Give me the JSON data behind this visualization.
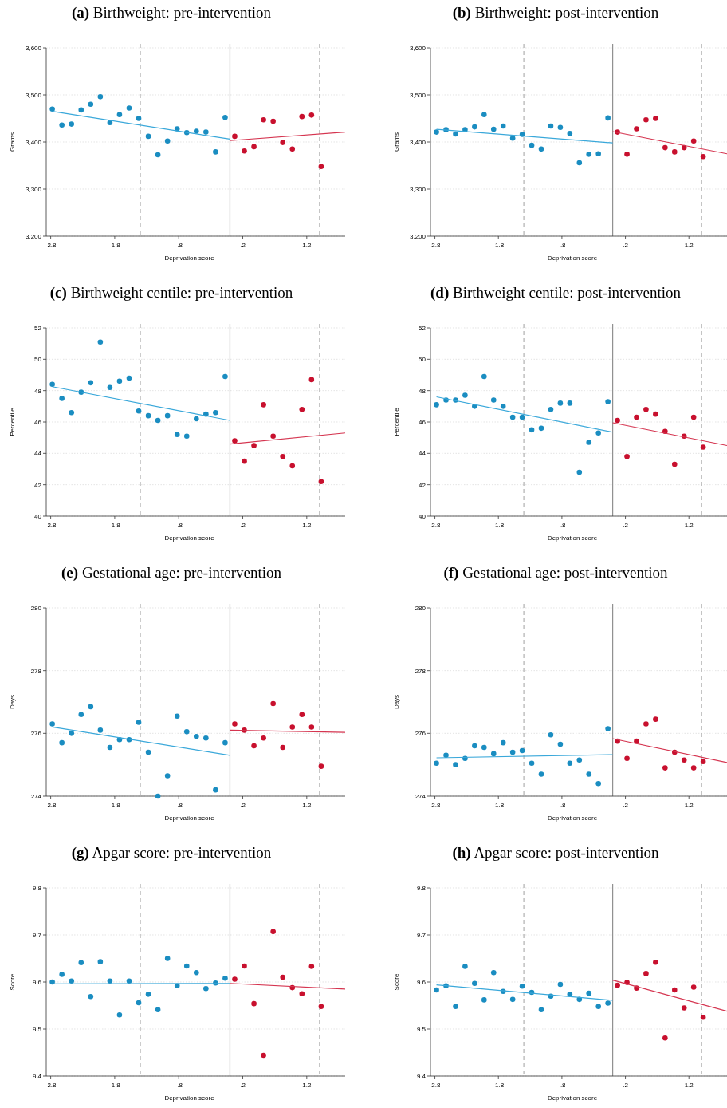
{
  "chart_data": [
    {
      "type": "scatter",
      "title": "(a) Birthweight: pre-intervention",
      "xlabel": "Deprivation score",
      "ylabel": "Grams",
      "xlim": [
        -2.87,
        1.8
      ],
      "ylim": [
        3200,
        3600
      ],
      "xticks": [
        {
          "value": -2.8,
          "label": "-2.8"
        },
        {
          "value": -1.8,
          "label": "-1.8"
        },
        {
          "value": -0.8,
          "label": "-.8"
        },
        {
          "value": 0.2,
          "label": ".2"
        },
        {
          "value": 1.2,
          "label": "1.2"
        }
      ],
      "yticks": [
        {
          "value": 3200,
          "label": "3,200"
        },
        {
          "value": 3300,
          "label": "3,300"
        },
        {
          "value": 3400,
          "label": "3,400"
        },
        {
          "value": 3500,
          "label": "3,500"
        },
        {
          "value": 3600,
          "label": "3,600"
        }
      ],
      "grid": "y",
      "marker": "circle",
      "ref_lines": [
        {
          "axis": "x",
          "value": -1.4,
          "color": "#b0b0b0",
          "line_style": "dashed"
        },
        {
          "axis": "x",
          "value": 0,
          "color": "#909090",
          "line_style": "solid"
        },
        {
          "axis": "x",
          "value": 1.4,
          "color": "#b0b0b0",
          "line_style": "dashed"
        }
      ],
      "series": [
        {
          "type": "scatter",
          "color": "#1a8dc1",
          "x": [
            -2.775,
            -2.625,
            -2.475,
            -2.325,
            -2.175,
            -2.025,
            -1.875,
            -1.725,
            -1.575,
            -1.425,
            -1.275,
            -1.125,
            -0.975,
            -0.825,
            -0.675,
            -0.525,
            -0.375,
            -0.225,
            -0.075
          ],
          "values": [
            3470,
            3436,
            3438,
            3468,
            3480,
            3496,
            3441,
            3458,
            3472,
            3450,
            3412,
            3373,
            3402,
            3428,
            3420,
            3423,
            3421,
            3379,
            3452
          ]
        },
        {
          "type": "line",
          "color": "#3aa8da",
          "x": [
            -2.775,
            0
          ],
          "values": [
            3465,
            3406
          ],
          "marker": "none"
        },
        {
          "type": "scatter",
          "color": "#c8102e",
          "x": [
            0.075,
            0.225,
            0.375,
            0.525,
            0.675,
            0.825,
            0.975,
            1.125,
            1.275,
            1.425
          ],
          "values": [
            3412,
            3381,
            3390,
            3447,
            3444,
            3399,
            3385,
            3454,
            3457,
            3348
          ]
        },
        {
          "type": "line",
          "color": "#d53550",
          "x": [
            0,
            1.8
          ],
          "values": [
            3403,
            3421
          ],
          "marker": "none"
        }
      ]
    },
    {
      "type": "scatter",
      "title": "(b) Birthweight: post-intervention",
      "xlabel": "Deprivation score",
      "ylabel": "Grams",
      "xlim": [
        -2.87,
        1.8
      ],
      "ylim": [
        3200,
        3600
      ],
      "xticks": [
        {
          "value": -2.8,
          "label": "-2.8"
        },
        {
          "value": -1.8,
          "label": "-1.8"
        },
        {
          "value": -0.8,
          "label": "-.8"
        },
        {
          "value": 0.2,
          "label": ".2"
        },
        {
          "value": 1.2,
          "label": "1.2"
        }
      ],
      "yticks": [
        {
          "value": 3200,
          "label": "3,200"
        },
        {
          "value": 3300,
          "label": "3,300"
        },
        {
          "value": 3400,
          "label": "3,400"
        },
        {
          "value": 3500,
          "label": "3,500"
        },
        {
          "value": 3600,
          "label": "3,600"
        }
      ],
      "grid": "y",
      "marker": "circle",
      "ref_lines": [
        {
          "axis": "x",
          "value": -1.4,
          "color": "#b0b0b0",
          "line_style": "dashed"
        },
        {
          "axis": "x",
          "value": 0,
          "color": "#909090",
          "line_style": "solid"
        },
        {
          "axis": "x",
          "value": 1.4,
          "color": "#b0b0b0",
          "line_style": "dashed"
        }
      ],
      "series": [
        {
          "type": "scatter",
          "color": "#1a8dc1",
          "x": [
            -2.775,
            -2.625,
            -2.475,
            -2.325,
            -2.175,
            -2.025,
            -1.875,
            -1.725,
            -1.575,
            -1.425,
            -1.275,
            -1.125,
            -0.975,
            -0.825,
            -0.675,
            -0.525,
            -0.375,
            -0.225,
            -0.075
          ],
          "values": [
            3421,
            3426,
            3417,
            3426,
            3432,
            3458,
            3427,
            3434,
            3408,
            3416,
            3393,
            3385,
            3434,
            3431,
            3418,
            3356,
            3374,
            3375,
            3451
          ]
        },
        {
          "type": "line",
          "color": "#3aa8da",
          "x": [
            -2.775,
            0
          ],
          "values": [
            3427,
            3398
          ],
          "marker": "none"
        },
        {
          "type": "scatter",
          "color": "#c8102e",
          "x": [
            0.075,
            0.225,
            0.375,
            0.525,
            0.675,
            0.825,
            0.975,
            1.125,
            1.275,
            1.425
          ],
          "values": [
            3421,
            3374,
            3428,
            3447,
            3450,
            3388,
            3379,
            3388,
            3402,
            3369
          ]
        },
        {
          "type": "line",
          "color": "#d53550",
          "x": [
            0,
            1.8
          ],
          "values": [
            3422,
            3375
          ],
          "marker": "none"
        }
      ]
    },
    {
      "type": "scatter",
      "title": "(c) Birthweight centile: pre-intervention",
      "xlabel": "Deprivation score",
      "ylabel": "Percentile",
      "xlim": [
        -2.87,
        1.8
      ],
      "ylim": [
        40,
        52
      ],
      "xticks": [
        {
          "value": -2.8,
          "label": "-2.8"
        },
        {
          "value": -1.8,
          "label": "-1.8"
        },
        {
          "value": -0.8,
          "label": "-.8"
        },
        {
          "value": 0.2,
          "label": ".2"
        },
        {
          "value": 1.2,
          "label": "1.2"
        }
      ],
      "yticks": [
        40,
        42,
        44,
        46,
        48,
        50,
        52
      ],
      "grid": "y",
      "marker": "circle",
      "ref_lines": [
        {
          "axis": "x",
          "value": -1.4,
          "color": "#b0b0b0",
          "line_style": "dashed"
        },
        {
          "axis": "x",
          "value": 0,
          "color": "#909090",
          "line_style": "solid"
        },
        {
          "axis": "x",
          "value": 1.4,
          "color": "#b0b0b0",
          "line_style": "dashed"
        }
      ],
      "series": [
        {
          "type": "scatter",
          "color": "#1a8dc1",
          "x": [
            -2.775,
            -2.625,
            -2.475,
            -2.325,
            -2.175,
            -2.025,
            -1.875,
            -1.725,
            -1.575,
            -1.425,
            -1.275,
            -1.125,
            -0.975,
            -0.825,
            -0.675,
            -0.525,
            -0.375,
            -0.225,
            -0.075
          ],
          "values": [
            48.4,
            47.5,
            46.6,
            47.9,
            48.5,
            51.1,
            48.2,
            48.6,
            48.8,
            46.7,
            46.4,
            46.1,
            46.4,
            45.2,
            45.1,
            46.2,
            46.5,
            46.6,
            48.9
          ]
        },
        {
          "type": "line",
          "color": "#3aa8da",
          "x": [
            -2.775,
            0
          ],
          "values": [
            48.25,
            46.1
          ],
          "marker": "none"
        },
        {
          "type": "scatter",
          "color": "#c8102e",
          "x": [
            0.075,
            0.225,
            0.375,
            0.525,
            0.675,
            0.825,
            0.975,
            1.125,
            1.275,
            1.425
          ],
          "values": [
            44.8,
            43.5,
            44.5,
            47.1,
            45.1,
            43.8,
            43.2,
            46.8,
            48.7,
            42.2
          ]
        },
        {
          "type": "line",
          "color": "#d53550",
          "x": [
            0,
            1.8
          ],
          "values": [
            44.6,
            45.3
          ],
          "marker": "none"
        }
      ]
    },
    {
      "type": "scatter",
      "title": "(d) Birthweight centile: post-intervention",
      "xlabel": "Deprivation score",
      "ylabel": "Percentile",
      "xlim": [
        -2.87,
        1.8
      ],
      "ylim": [
        40,
        52
      ],
      "xticks": [
        {
          "value": -2.8,
          "label": "-2.8"
        },
        {
          "value": -1.8,
          "label": "-1.8"
        },
        {
          "value": -0.8,
          "label": "-.8"
        },
        {
          "value": 0.2,
          "label": ".2"
        },
        {
          "value": 1.2,
          "label": "1.2"
        }
      ],
      "yticks": [
        40,
        42,
        44,
        46,
        48,
        50,
        52
      ],
      "grid": "y",
      "marker": "circle",
      "ref_lines": [
        {
          "axis": "x",
          "value": -1.4,
          "color": "#b0b0b0",
          "line_style": "dashed"
        },
        {
          "axis": "x",
          "value": 0,
          "color": "#909090",
          "line_style": "solid"
        },
        {
          "axis": "x",
          "value": 1.4,
          "color": "#b0b0b0",
          "line_style": "dashed"
        }
      ],
      "series": [
        {
          "type": "scatter",
          "color": "#1a8dc1",
          "x": [
            -2.775,
            -2.625,
            -2.475,
            -2.325,
            -2.175,
            -2.025,
            -1.875,
            -1.725,
            -1.575,
            -1.425,
            -1.275,
            -1.125,
            -0.975,
            -0.825,
            -0.675,
            -0.525,
            -0.375,
            -0.225,
            -0.075
          ],
          "values": [
            47.1,
            47.4,
            47.4,
            47.7,
            47.0,
            48.9,
            47.4,
            47.0,
            46.3,
            46.3,
            45.5,
            45.6,
            46.8,
            47.2,
            47.2,
            42.8,
            44.7,
            45.3,
            47.3
          ]
        },
        {
          "type": "line",
          "color": "#3aa8da",
          "x": [
            -2.775,
            0
          ],
          "values": [
            47.6,
            45.35
          ],
          "marker": "none"
        },
        {
          "type": "scatter",
          "color": "#c8102e",
          "x": [
            0.075,
            0.225,
            0.375,
            0.525,
            0.675,
            0.825,
            0.975,
            1.125,
            1.275,
            1.425
          ],
          "values": [
            46.1,
            43.8,
            46.3,
            46.8,
            46.5,
            45.4,
            43.3,
            45.1,
            46.3,
            44.4
          ]
        },
        {
          "type": "line",
          "color": "#d53550",
          "x": [
            0,
            1.8
          ],
          "values": [
            45.95,
            44.5
          ],
          "marker": "none"
        }
      ]
    },
    {
      "type": "scatter",
      "title": "(e) Gestational age: pre-intervention",
      "xlabel": "Deprivation score",
      "ylabel": "Days",
      "xlim": [
        -2.87,
        1.8
      ],
      "ylim": [
        274,
        280
      ],
      "xticks": [
        {
          "value": -2.8,
          "label": "-2.8"
        },
        {
          "value": -1.8,
          "label": "-1.8"
        },
        {
          "value": -0.8,
          "label": "-.8"
        },
        {
          "value": 0.2,
          "label": ".2"
        },
        {
          "value": 1.2,
          "label": "1.2"
        }
      ],
      "yticks": [
        274,
        276,
        278,
        280
      ],
      "grid": "y",
      "marker": "circle",
      "ref_lines": [
        {
          "axis": "x",
          "value": -1.4,
          "color": "#b0b0b0",
          "line_style": "dashed"
        },
        {
          "axis": "x",
          "value": 0,
          "color": "#909090",
          "line_style": "solid"
        },
        {
          "axis": "x",
          "value": 1.4,
          "color": "#b0b0b0",
          "line_style": "dashed"
        }
      ],
      "series": [
        {
          "type": "scatter",
          "color": "#1a8dc1",
          "x": [
            -2.775,
            -2.625,
            -2.475,
            -2.325,
            -2.175,
            -2.025,
            -1.875,
            -1.725,
            -1.575,
            -1.425,
            -1.275,
            -1.125,
            -0.975,
            -0.825,
            -0.675,
            -0.525,
            -0.375,
            -0.225,
            -0.075
          ],
          "values": [
            276.3,
            275.7,
            276.0,
            276.6,
            276.85,
            276.1,
            275.55,
            275.8,
            275.8,
            276.35,
            275.4,
            274.0,
            274.65,
            276.55,
            276.05,
            275.9,
            275.85,
            274.2,
            275.7
          ]
        },
        {
          "type": "line",
          "color": "#3aa8da",
          "x": [
            -2.775,
            0
          ],
          "values": [
            276.2,
            275.3
          ],
          "marker": "none"
        },
        {
          "type": "scatter",
          "color": "#c8102e",
          "x": [
            0.075,
            0.225,
            0.375,
            0.525,
            0.675,
            0.825,
            0.975,
            1.125,
            1.275,
            1.425
          ],
          "values": [
            276.3,
            276.1,
            275.6,
            275.85,
            276.95,
            275.55,
            276.2,
            276.6,
            276.2,
            274.95
          ]
        },
        {
          "type": "line",
          "color": "#d53550",
          "x": [
            0,
            1.8
          ],
          "values": [
            276.1,
            276.03
          ],
          "marker": "none"
        }
      ]
    },
    {
      "type": "scatter",
      "title": "(f) Gestational age: post-intervention",
      "xlabel": "Deprivation score",
      "ylabel": "Days",
      "xlim": [
        -2.87,
        1.8
      ],
      "ylim": [
        274,
        280
      ],
      "xticks": [
        {
          "value": -2.8,
          "label": "-2.8"
        },
        {
          "value": -1.8,
          "label": "-1.8"
        },
        {
          "value": -0.8,
          "label": "-.8"
        },
        {
          "value": 0.2,
          "label": ".2"
        },
        {
          "value": 1.2,
          "label": "1.2"
        }
      ],
      "yticks": [
        274,
        276,
        278,
        280
      ],
      "grid": "y",
      "marker": "circle",
      "ref_lines": [
        {
          "axis": "x",
          "value": -1.4,
          "color": "#b0b0b0",
          "line_style": "dashed"
        },
        {
          "axis": "x",
          "value": 0,
          "color": "#909090",
          "line_style": "solid"
        },
        {
          "axis": "x",
          "value": 1.4,
          "color": "#b0b0b0",
          "line_style": "dashed"
        }
      ],
      "series": [
        {
          "type": "scatter",
          "color": "#1a8dc1",
          "x": [
            -2.775,
            -2.625,
            -2.475,
            -2.325,
            -2.175,
            -2.025,
            -1.875,
            -1.725,
            -1.575,
            -1.425,
            -1.275,
            -1.125,
            -0.975,
            -0.825,
            -0.675,
            -0.525,
            -0.375,
            -0.225,
            -0.075
          ],
          "values": [
            275.05,
            275.3,
            275.0,
            275.2,
            275.6,
            275.55,
            275.35,
            275.7,
            275.4,
            275.45,
            275.05,
            274.7,
            275.95,
            275.65,
            275.05,
            275.15,
            274.7,
            274.4,
            276.15
          ]
        },
        {
          "type": "line",
          "color": "#3aa8da",
          "x": [
            -2.775,
            0
          ],
          "values": [
            275.22,
            275.32
          ],
          "marker": "none"
        },
        {
          "type": "scatter",
          "color": "#c8102e",
          "x": [
            0.075,
            0.225,
            0.375,
            0.525,
            0.675,
            0.825,
            0.975,
            1.125,
            1.275,
            1.425
          ],
          "values": [
            275.75,
            275.2,
            275.75,
            276.3,
            276.45,
            274.9,
            275.4,
            275.15,
            274.9,
            275.1
          ]
        },
        {
          "type": "line",
          "color": "#d53550",
          "x": [
            0,
            1.8
          ],
          "values": [
            275.83,
            275.07
          ],
          "marker": "none"
        }
      ]
    },
    {
      "type": "scatter",
      "title": "(g) Apgar score: pre-intervention",
      "xlabel": "Deprivation score",
      "ylabel": "Score",
      "xlim": [
        -2.87,
        1.8
      ],
      "ylim": [
        9.4,
        9.8
      ],
      "xticks": [
        {
          "value": -2.8,
          "label": "-2.8"
        },
        {
          "value": -1.8,
          "label": "-1.8"
        },
        {
          "value": -0.8,
          "label": "-.8"
        },
        {
          "value": 0.2,
          "label": ".2"
        },
        {
          "value": 1.2,
          "label": "1.2"
        }
      ],
      "yticks": [
        9.4,
        9.5,
        9.6,
        9.7,
        9.8
      ],
      "grid": "y",
      "marker": "circle",
      "ref_lines": [
        {
          "axis": "x",
          "value": -1.4,
          "color": "#b0b0b0",
          "line_style": "dashed"
        },
        {
          "axis": "x",
          "value": 0,
          "color": "#909090",
          "line_style": "solid"
        },
        {
          "axis": "x",
          "value": 1.4,
          "color": "#b0b0b0",
          "line_style": "dashed"
        }
      ],
      "series": [
        {
          "type": "scatter",
          "color": "#1a8dc1",
          "x": [
            -2.775,
            -2.625,
            -2.475,
            -2.325,
            -2.175,
            -2.025,
            -1.875,
            -1.725,
            -1.575,
            -1.425,
            -1.275,
            -1.125,
            -0.975,
            -0.825,
            -0.675,
            -0.525,
            -0.375,
            -0.225,
            -0.075
          ],
          "values": [
            9.6,
            9.616,
            9.602,
            9.641,
            9.569,
            9.643,
            9.602,
            9.53,
            9.602,
            9.556,
            9.574,
            9.541,
            9.65,
            9.592,
            9.634,
            9.62,
            9.586,
            9.598,
            9.608
          ]
        },
        {
          "type": "line",
          "color": "#3aa8da",
          "x": [
            -2.775,
            0
          ],
          "values": [
            9.596,
            9.597
          ],
          "marker": "none"
        },
        {
          "type": "scatter",
          "color": "#c8102e",
          "x": [
            0.075,
            0.225,
            0.375,
            0.525,
            0.675,
            0.825,
            0.975,
            1.125,
            1.275,
            1.425
          ],
          "values": [
            9.606,
            9.634,
            9.554,
            9.444,
            9.707,
            9.61,
            9.588,
            9.575,
            9.633,
            9.548
          ]
        },
        {
          "type": "line",
          "color": "#d53550",
          "x": [
            0,
            1.8
          ],
          "values": [
            9.597,
            9.585
          ],
          "marker": "none"
        }
      ]
    },
    {
      "type": "scatter",
      "title": "(h) Apgar score: post-intervention",
      "xlabel": "Deprivation score",
      "ylabel": "Score",
      "xlim": [
        -2.87,
        1.8
      ],
      "ylim": [
        9.4,
        9.8
      ],
      "xticks": [
        {
          "value": -2.8,
          "label": "-2.8"
        },
        {
          "value": -1.8,
          "label": "-1.8"
        },
        {
          "value": -0.8,
          "label": "-.8"
        },
        {
          "value": 0.2,
          "label": ".2"
        },
        {
          "value": 1.2,
          "label": "1.2"
        }
      ],
      "yticks": [
        9.4,
        9.5,
        9.6,
        9.7,
        9.8
      ],
      "grid": "y",
      "marker": "circle",
      "ref_lines": [
        {
          "axis": "x",
          "value": -1.4,
          "color": "#b0b0b0",
          "line_style": "dashed"
        },
        {
          "axis": "x",
          "value": 0,
          "color": "#909090",
          "line_style": "solid"
        },
        {
          "axis": "x",
          "value": 1.4,
          "color": "#b0b0b0",
          "line_style": "dashed"
        }
      ],
      "series": [
        {
          "type": "scatter",
          "color": "#1a8dc1",
          "x": [
            -2.775,
            -2.625,
            -2.475,
            -2.325,
            -2.175,
            -2.025,
            -1.875,
            -1.725,
            -1.575,
            -1.425,
            -1.275,
            -1.125,
            -0.975,
            -0.825,
            -0.675,
            -0.525,
            -0.375,
            -0.225,
            -0.075
          ],
          "values": [
            9.583,
            9.592,
            9.548,
            9.633,
            9.597,
            9.562,
            9.62,
            9.58,
            9.563,
            9.591,
            9.578,
            9.541,
            9.57,
            9.595,
            9.574,
            9.563,
            9.576,
            9.548,
            9.555
          ]
        },
        {
          "type": "line",
          "color": "#3aa8da",
          "x": [
            -2.775,
            0
          ],
          "values": [
            9.594,
            9.561
          ],
          "marker": "none"
        },
        {
          "type": "scatter",
          "color": "#c8102e",
          "x": [
            0.075,
            0.225,
            0.375,
            0.525,
            0.675,
            0.825,
            0.975,
            1.125,
            1.275,
            1.425
          ],
          "values": [
            9.593,
            9.599,
            9.587,
            9.618,
            9.642,
            9.481,
            9.583,
            9.545,
            9.589,
            9.525
          ]
        },
        {
          "type": "line",
          "color": "#d53550",
          "x": [
            0,
            1.8
          ],
          "values": [
            9.604,
            9.538
          ],
          "marker": "none"
        }
      ]
    }
  ]
}
